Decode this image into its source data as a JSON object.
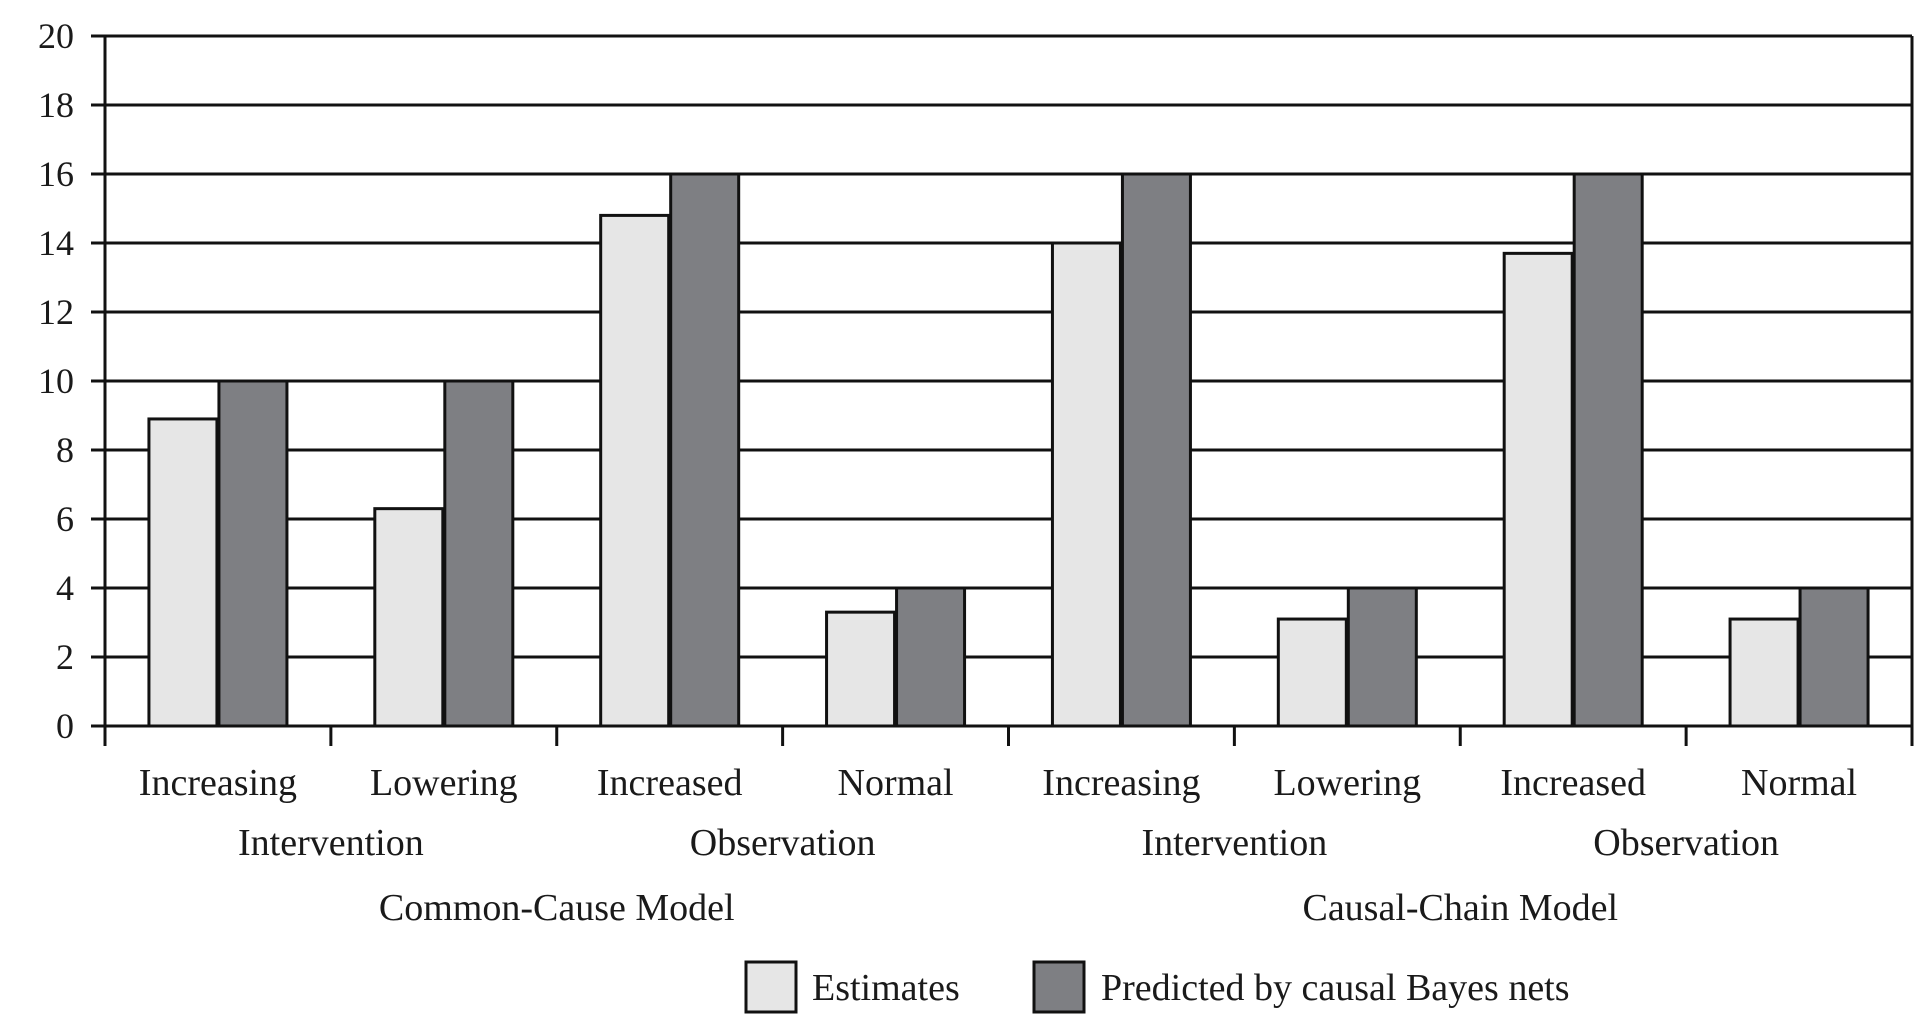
{
  "chart_data": {
    "type": "bar",
    "categories": [
      "Increasing",
      "Lowering",
      "Increased",
      "Normal",
      "Increasing",
      "Lowering",
      "Increased",
      "Normal"
    ],
    "subgroups": [
      {
        "label": "Intervention",
        "span": [
          0,
          1
        ]
      },
      {
        "label": "Observation",
        "span": [
          2,
          3
        ]
      },
      {
        "label": "Intervention",
        "span": [
          4,
          5
        ]
      },
      {
        "label": "Observation",
        "span": [
          6,
          7
        ]
      }
    ],
    "groups": [
      {
        "label": "Common-Cause Model",
        "span": [
          0,
          3
        ]
      },
      {
        "label": "Causal-Chain Model",
        "span": [
          4,
          7
        ]
      }
    ],
    "series": [
      {
        "name": "Estimates",
        "color": "#e6e6e6",
        "values": [
          8.9,
          6.3,
          14.8,
          3.3,
          14.0,
          3.1,
          13.7,
          3.1
        ]
      },
      {
        "name": "Predicted by causal Bayes nets",
        "color": "#7e7f83",
        "values": [
          10,
          10,
          16,
          4,
          16,
          4,
          16,
          4
        ]
      }
    ],
    "yticks": [
      "0",
      "2",
      "4",
      "6",
      "8",
      "10",
      "12",
      "14",
      "16",
      "18",
      "20"
    ],
    "ylim": [
      0,
      20
    ],
    "grid": true,
    "legend": "bottom-center",
    "xlabel": "",
    "ylabel": ""
  }
}
